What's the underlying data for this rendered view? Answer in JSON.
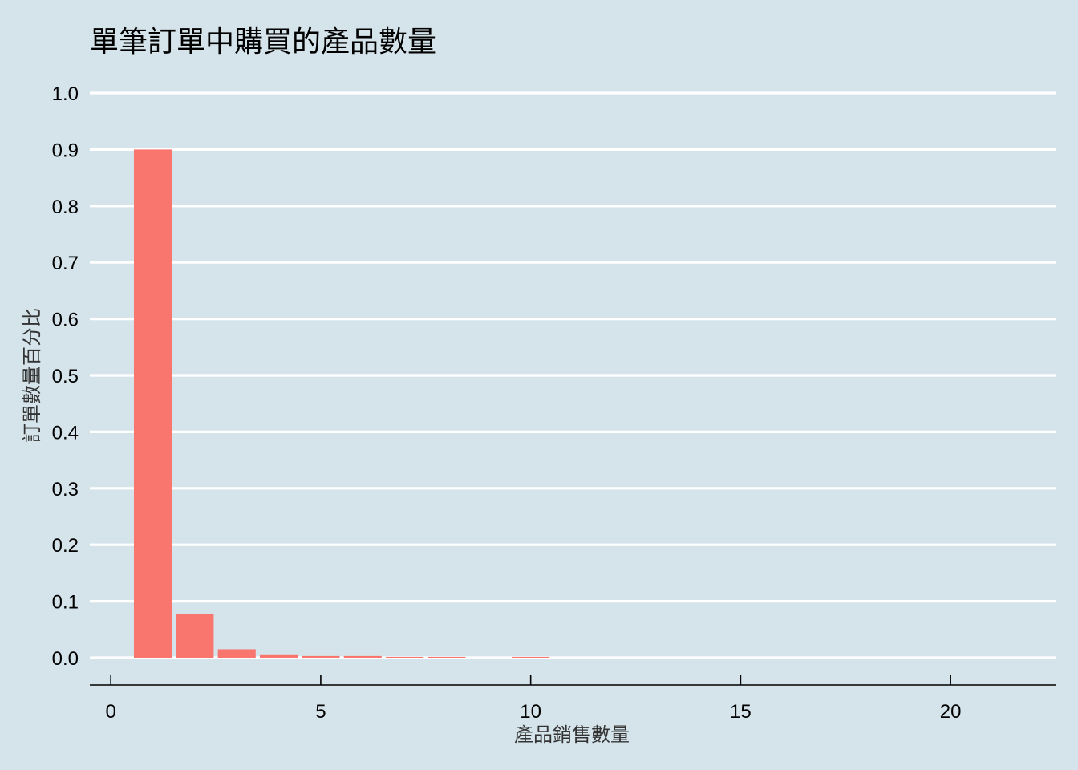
{
  "chart_data": {
    "type": "bar",
    "title": "單筆訂單中購買的產品數量",
    "xlabel": "產品銷售數量",
    "ylabel": "訂單數量百分比",
    "x": [
      1,
      2,
      3,
      4,
      5,
      6,
      7,
      8,
      10
    ],
    "values": [
      0.9,
      0.077,
      0.015,
      0.006,
      0.003,
      0.003,
      0.0015,
      0.0015,
      0.0015
    ],
    "xlim": [
      -0.5,
      22.5
    ],
    "ylim": [
      -0.05,
      1.0
    ],
    "xticks": [
      0,
      5,
      10,
      15,
      20
    ],
    "yticks": [
      0.0,
      0.1,
      0.2,
      0.3,
      0.4,
      0.5,
      0.6,
      0.7,
      0.8,
      0.9,
      1.0
    ],
    "xtick_labels": [
      "0",
      "5",
      "10",
      "15",
      "20"
    ],
    "ytick_labels": [
      "0.0",
      "0.1",
      "0.2",
      "0.3",
      "0.4",
      "0.5",
      "0.6",
      "0.7",
      "0.8",
      "0.9",
      "1.0"
    ],
    "bar_color": "#f8766d",
    "background_color": "#d5e4eb",
    "grid": "horizontal",
    "grid_color": "#ffffff",
    "legend": "none"
  }
}
